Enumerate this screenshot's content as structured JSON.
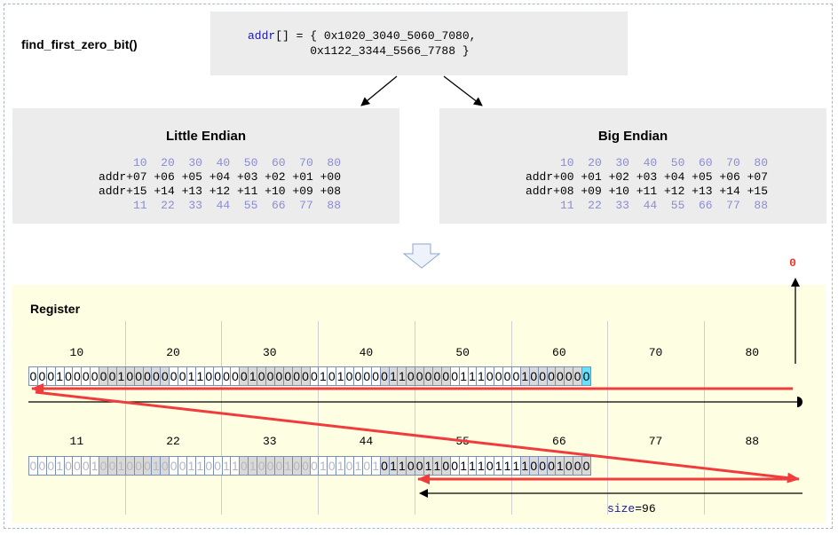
{
  "function_title": "find_first_zero_bit()",
  "code": {
    "line1_kw": "addr",
    "line1_rest": "[] = { 0x1020_3040_5060_7080,",
    "line2": "         0x1122_3344_5566_7788 }"
  },
  "little_endian": {
    "title": "Little Endian",
    "top_bytes": "10  20  30  40  50  60  70  80",
    "row1": "addr+07 +06 +05 +04 +03 +02 +01 +00",
    "row2": "addr+15 +14 +13 +12 +11 +10 +09 +08",
    "bottom_bytes": "11  22  33  44  55  66  77  88"
  },
  "big_endian": {
    "title": "Big Endian",
    "top_bytes": "10  20  30  40  50  60  70  80",
    "row1": "addr+00 +01 +02 +03 +04 +05 +06 +07",
    "row2": "addr+08 +09 +10 +11 +12 +13 +14 +15",
    "bottom_bytes": "11  22  33  44  55  66  77  88"
  },
  "register": {
    "title": "Register",
    "row1_groups": [
      "10",
      "20",
      "30",
      "40",
      "50",
      "60",
      "70",
      "80"
    ],
    "row2_groups": [
      "11",
      "22",
      "33",
      "44",
      "55",
      "66",
      "77",
      "88"
    ],
    "row1_bits": "0001000000100000001100000100000001010000011000000111000010000000",
    "row2_bits": "0001000100100010001100110100010001010101011001100111011110001000",
    "result_label": "0",
    "size_key": "size",
    "size_value": "=96"
  },
  "colors": {
    "arrow_red": "#f03c3c",
    "highlight_cyan": "#66e0ff",
    "byte_blue": "#8a8cd6",
    "register_bg": "#fefee2"
  }
}
